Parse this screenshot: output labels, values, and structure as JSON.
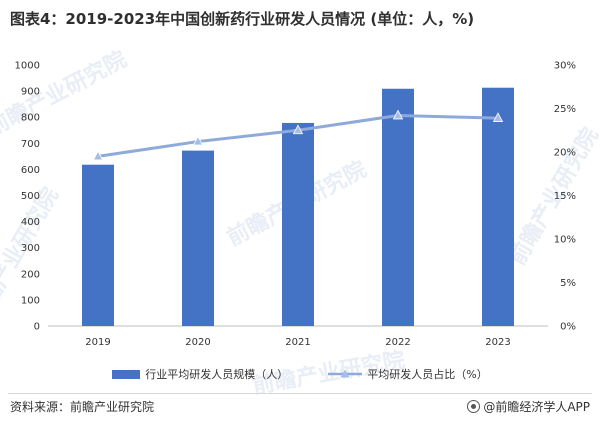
{
  "title": "图表4：2019-2023年中国创新药行业研发人员情况 (单位：人，%)",
  "source": "资料来源：前瞻产业研究院",
  "credit": "@前瞻经济学人APP",
  "watermark_text": "前瞻产业研究院",
  "colors": {
    "bar": "#4472c4",
    "line": "#8eaadb",
    "marker": "#a4bde6"
  },
  "chart_data": {
    "type": "bar",
    "categories": [
      "2019",
      "2020",
      "2021",
      "2022",
      "2023"
    ],
    "series": [
      {
        "name": "行业平均研发人员规模（人）",
        "type": "bar",
        "axis": "left",
        "values": [
          618,
          672,
          778,
          909,
          913
        ]
      },
      {
        "name": "平均研发人员占比（%）",
        "type": "line",
        "axis": "right",
        "values": [
          19.5,
          21.2,
          22.5,
          24.2,
          23.9
        ]
      }
    ],
    "ylim_left": [
      0,
      1000
    ],
    "yticks_left": [
      "0",
      "100",
      "200",
      "300",
      "400",
      "500",
      "600",
      "700",
      "800",
      "900",
      "1000"
    ],
    "ylim_right": [
      0,
      30
    ],
    "yticks_right": [
      "0%",
      "5%",
      "10%",
      "15%",
      "20%",
      "25%",
      "30%"
    ],
    "grid": false,
    "legend_position": "bottom"
  }
}
